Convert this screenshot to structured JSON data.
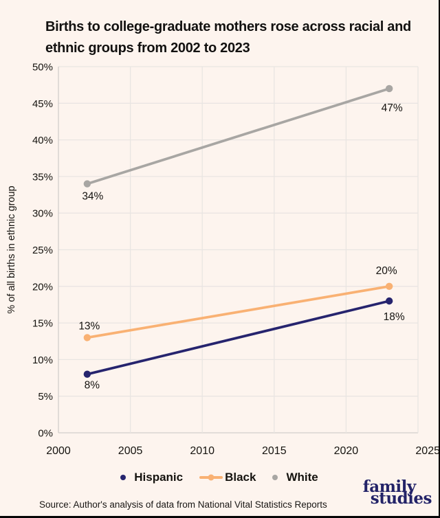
{
  "header": {
    "title": "Births to college-graduate mothers rose across racial and ethnic groups from 2002 to 2023"
  },
  "chart_data": {
    "type": "line",
    "x": [
      2002,
      2023
    ],
    "series": [
      {
        "name": "Hispanic",
        "color": "#26246e",
        "values": [
          8,
          18
        ],
        "point_labels": [
          "8%",
          "18%"
        ],
        "label_offsets": [
          [
            7,
            21
          ],
          [
            7,
            28
          ]
        ],
        "legend_marker": "dot"
      },
      {
        "name": "Black",
        "color": "#f9b173",
        "values": [
          13,
          20
        ],
        "point_labels": [
          "13%",
          "20%"
        ],
        "label_offsets": [
          [
            3,
            -12
          ],
          [
            -4,
            -18
          ]
        ],
        "legend_marker": "line-dot"
      },
      {
        "name": "White",
        "color": "#a8a6a3",
        "values": [
          34,
          47
        ],
        "point_labels": [
          "34%",
          "47%"
        ],
        "label_offsets": [
          [
            8,
            23
          ],
          [
            4,
            33
          ]
        ],
        "legend_marker": "dot"
      }
    ],
    "title": "Births to college-graduate mothers rose across racial and ethnic groups from 2002 to 2023",
    "xlabel": "",
    "ylabel": "% of all births in ethnic group",
    "xlim": [
      2000,
      2025
    ],
    "ylim": [
      0,
      50
    ],
    "x_ticks": [
      2000,
      2005,
      2010,
      2015,
      2020,
      2025
    ],
    "y_ticks": [
      0,
      5,
      10,
      15,
      20,
      25,
      30,
      35,
      40,
      45,
      50
    ],
    "y_tick_suffix": "%",
    "grid": true,
    "legend_position": "bottom"
  },
  "footer": {
    "source": "Source: Author's analysis of data from National Vital Statistics Reports",
    "logo": {
      "line1": "family",
      "line2": "studies"
    }
  },
  "colors": {
    "background": "#fdf4ee",
    "grid": "#e9e5e2",
    "axis": "#d2cecb",
    "text": "#15130f",
    "hispanic": "#26246e",
    "black_series": "#f9b173",
    "white_series": "#a8a6a3",
    "logo_navy": "#232368"
  }
}
